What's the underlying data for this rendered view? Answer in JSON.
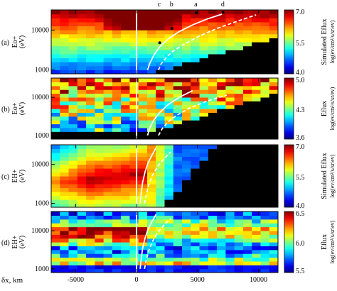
{
  "figure": {
    "shared_xlabel": "δx, km",
    "x_ticks": [
      -5000,
      0,
      5000,
      10000
    ],
    "x_range": [
      -7000,
      11600
    ],
    "y_ticks": [
      1000,
      10000
    ],
    "y_range": [
      800,
      32000
    ],
    "y_scale": "log",
    "colormap": "rainbow"
  },
  "chart_data": [
    {
      "type": "heatmap",
      "panel_label": "(a)",
      "ylabel_species": "Eo+",
      "ylabel_unit": "(eV)",
      "colorbar_title": "Simulated Eflux",
      "colorbar_unit": "log(ev/cm²/s/sr/ev)",
      "colorbar_range": [
        4.0,
        7.0
      ],
      "colorbar_ticks": [
        "7.0",
        "5.5",
        "4.0"
      ],
      "shape": "dispersed-low",
      "reference_markers": [
        {
          "label": "c",
          "x": 1900,
          "energy": 4800
        },
        {
          "label": "b",
          "x": 2900,
          "energy": 11000
        },
        {
          "label": "a",
          "x": 4900,
          "energy": 27000
        },
        {
          "label": "d",
          "x": 7100,
          "energy": 28000
        }
      ],
      "curves": [
        {
          "style": "solid",
          "x": [
            900,
            1100,
            1400,
            1900,
            2600,
            3500,
            4600,
            5800,
            7000
          ],
          "energy": [
            1000,
            1500,
            2300,
            3800,
            6000,
            9200,
            13500,
            19000,
            25000
          ]
        },
        {
          "style": "dashed",
          "x": [
            1800,
            2000,
            2400,
            3000,
            4000,
            5200,
            6600,
            8100,
            9800
          ],
          "energy": [
            1000,
            1400,
            2000,
            3000,
            4600,
            7200,
            11000,
            16000,
            24000
          ]
        }
      ]
    },
    {
      "type": "heatmap",
      "panel_label": "(b)",
      "ylabel_species": "Eo+",
      "ylabel_unit": "(eV)",
      "colorbar_title": "Eflux",
      "colorbar_unit": "log(ev/cm²/s/sr/ev)",
      "colorbar_range": [
        3.6,
        5.0
      ],
      "colorbar_ticks": [
        "5.0",
        "4.3",
        "3.6"
      ],
      "shape": "patchy",
      "reference_markers": [],
      "curves": [
        {
          "style": "solid",
          "x": [
            900,
            1100,
            1400,
            1900,
            2600,
            3500,
            4600
          ],
          "energy": [
            1000,
            1600,
            2500,
            4000,
            6500,
            10000,
            15000
          ]
        },
        {
          "style": "dashed",
          "x": [
            1800,
            2100,
            2600,
            3300,
            4400,
            5800,
            7400
          ],
          "energy": [
            1000,
            1500,
            2300,
            3400,
            5300,
            8000,
            11500
          ]
        }
      ]
    },
    {
      "type": "heatmap",
      "panel_label": "(c)",
      "ylabel_species": "EH+",
      "ylabel_unit": "(eV)",
      "colorbar_title": "Simulated Eflux",
      "colorbar_unit": "log(ev/cm²/s/sr/ev)",
      "colorbar_range": [
        4.0,
        7.0
      ],
      "colorbar_ticks": [
        "7.0",
        "5.5",
        "4.0"
      ],
      "shape": "dispersed-high",
      "reference_markers": [],
      "curves": [
        {
          "style": "solid",
          "x": [
            300,
            380,
            500,
            700,
            950,
            1250,
            1600
          ],
          "energy": [
            1000,
            1800,
            3500,
            6500,
            11000,
            17000,
            27000
          ]
        },
        {
          "style": "dashed",
          "x": [
            650,
            800,
            1000,
            1300,
            1700,
            2200,
            2800
          ],
          "energy": [
            1000,
            1700,
            3000,
            5200,
            8600,
            13500,
            21000
          ]
        }
      ]
    },
    {
      "type": "heatmap",
      "panel_label": "(d)",
      "ylabel_species": "EH+",
      "ylabel_unit": "(eV)",
      "colorbar_title": "Eflux",
      "colorbar_unit": "log(ev/cm²/s/sr/ev)",
      "colorbar_range": [
        5.5,
        6.5
      ],
      "colorbar_ticks": [
        "6.5",
        "6.0",
        "5.5"
      ],
      "shape": "banded",
      "reference_markers": [],
      "curves": [
        {
          "style": "solid",
          "x": [
            300,
            380,
            500,
            700,
            950,
            1250,
            1600
          ],
          "energy": [
            1000,
            1800,
            3500,
            6500,
            11000,
            17000,
            27000
          ]
        },
        {
          "style": "dashed",
          "x": [
            650,
            800,
            1000,
            1300,
            1700,
            2200,
            2800
          ],
          "energy": [
            1000,
            1700,
            3000,
            5200,
            8600,
            13500,
            21000
          ]
        }
      ]
    }
  ]
}
